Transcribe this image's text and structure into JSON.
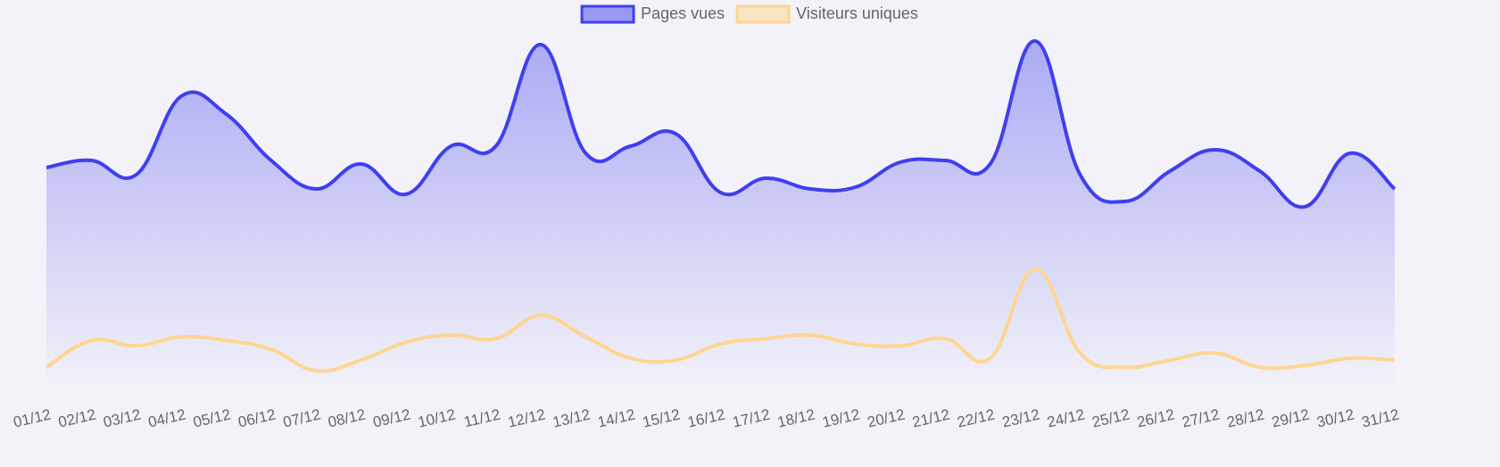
{
  "chart_data": {
    "type": "line",
    "categories": [
      "01/12",
      "02/12",
      "03/12",
      "04/12",
      "05/12",
      "06/12",
      "07/12",
      "08/12",
      "09/12",
      "10/12",
      "11/12",
      "12/12",
      "13/12",
      "14/12",
      "15/12",
      "16/12",
      "17/12",
      "18/12",
      "19/12",
      "20/12",
      "21/12",
      "22/12",
      "23/12",
      "24/12",
      "25/12",
      "26/12",
      "27/12",
      "28/12",
      "29/12",
      "30/12",
      "31/12"
    ],
    "series": [
      {
        "name": "Pages vues",
        "color": "#3f3ff0",
        "fill": true,
        "values": [
          63,
          65,
          61,
          83,
          78,
          65,
          57,
          64,
          55.5,
          69,
          69,
          97.5,
          67,
          69,
          72.5,
          56,
          60,
          57,
          57.5,
          64.5,
          65,
          64,
          98.5,
          61,
          53.5,
          62,
          68,
          62,
          52,
          67,
          57
        ]
      },
      {
        "name": "Visiteurs uniques",
        "color": "#ffd590",
        "fill": false,
        "values": [
          7,
          14.5,
          13,
          15.5,
          14.5,
          12,
          6,
          9,
          14,
          16,
          15,
          21.5,
          15.5,
          9.5,
          9,
          13.5,
          15,
          16,
          13.5,
          13,
          15,
          9.5,
          34.5,
          11,
          7,
          9,
          11,
          7,
          7.5,
          9.5,
          9
        ]
      }
    ],
    "ylim": [
      0,
      100
    ],
    "legend": "top"
  }
}
